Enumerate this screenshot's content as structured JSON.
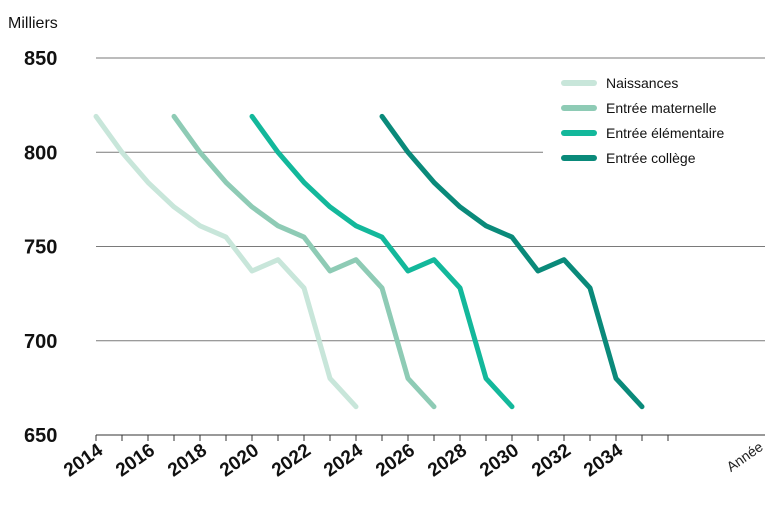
{
  "chart_data": {
    "type": "line",
    "ylabel": "Milliers",
    "xlabel": "Année",
    "ylim": [
      650,
      850
    ],
    "yticks": [
      "850",
      "800",
      "750",
      "700",
      "650"
    ],
    "xlim": [
      2014,
      2036
    ],
    "xtick_labels": [
      "2014",
      "2016",
      "2018",
      "2020",
      "2022",
      "2024",
      "2026",
      "2028",
      "2030",
      "2032",
      "2034"
    ],
    "grid": true,
    "legend_position": "top-right",
    "series": [
      {
        "name": "Naissances",
        "color": "#c8e6da",
        "x": [
          2014,
          2015,
          2016,
          2017,
          2018,
          2019,
          2020,
          2021,
          2022,
          2023,
          2024
        ],
        "values": [
          819,
          800,
          784,
          771,
          761,
          755,
          737,
          743,
          728,
          680,
          665
        ]
      },
      {
        "name": "Entrée maternelle",
        "color": "#8ecbb5",
        "x": [
          2017,
          2018,
          2019,
          2020,
          2021,
          2022,
          2023,
          2024,
          2025,
          2026,
          2027
        ],
        "values": [
          819,
          800,
          784,
          771,
          761,
          755,
          737,
          743,
          728,
          680,
          665
        ]
      },
      {
        "name": "Entrée élémentaire",
        "color": "#13b89b",
        "x": [
          2020,
          2021,
          2022,
          2023,
          2024,
          2025,
          2026,
          2027,
          2028,
          2029,
          2030
        ],
        "values": [
          819,
          800,
          784,
          771,
          761,
          755,
          737,
          743,
          728,
          680,
          665
        ]
      },
      {
        "name": "Entrée collège",
        "color": "#0a8a7a",
        "x": [
          2025,
          2026,
          2027,
          2028,
          2029,
          2030,
          2031,
          2032,
          2033,
          2034,
          2035
        ],
        "values": [
          819,
          800,
          784,
          771,
          761,
          755,
          737,
          743,
          728,
          680,
          665
        ]
      }
    ]
  }
}
